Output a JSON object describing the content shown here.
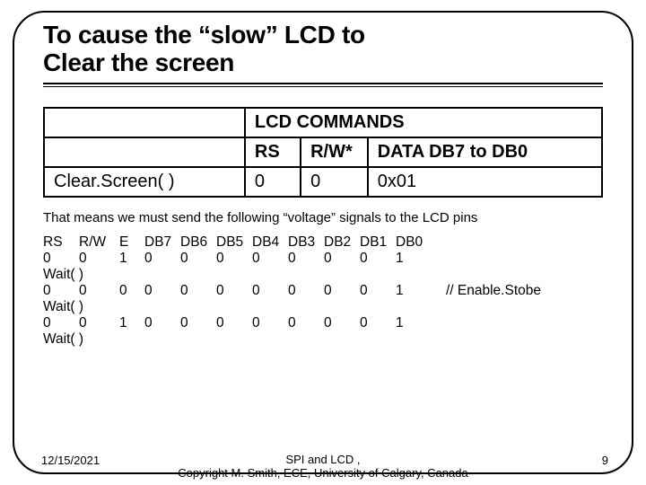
{
  "title_line1": "To cause the “slow” LCD to",
  "title_line2": "Clear the screen",
  "cmd_table": {
    "header_span": "LCD COMMANDS",
    "cols": [
      "RS",
      "R/W*",
      "DATA  DB7 to DB0"
    ],
    "func": "Clear.Screen( )",
    "values": [
      "0",
      "0",
      "0x01"
    ]
  },
  "explain": "That means we must send the following “voltage” signals to the LCD pins",
  "sig_headers": [
    "RS",
    "R/W",
    "E",
    "DB7",
    "DB6",
    "DB5",
    "DB4",
    "DB3",
    "DB2",
    "DB1",
    "DB0"
  ],
  "sig_rows": [
    {
      "cells": [
        "0",
        "0",
        "1",
        "0",
        "0",
        "0",
        "0",
        "0",
        "0",
        "0",
        "1"
      ],
      "comment": ""
    },
    {
      "wait": "Wait( )"
    },
    {
      "cells": [
        "0",
        "0",
        "0",
        "0",
        "0",
        "0",
        "0",
        "0",
        "0",
        "0",
        "1"
      ],
      "comment": "// Enable.Stobe"
    },
    {
      "wait": "Wait( )"
    },
    {
      "cells": [
        "0",
        "0",
        "1",
        "0",
        "0",
        "0",
        "0",
        "0",
        "0",
        "0",
        "1"
      ],
      "comment": ""
    },
    {
      "wait": "Wait( )"
    }
  ],
  "footer": {
    "date": "12/15/2021",
    "mid_line1": "SPI and LCD                                     ,",
    "mid_line2": "Copyright M. Smith, ECE, University of Calgary, Canada",
    "page": "9"
  }
}
